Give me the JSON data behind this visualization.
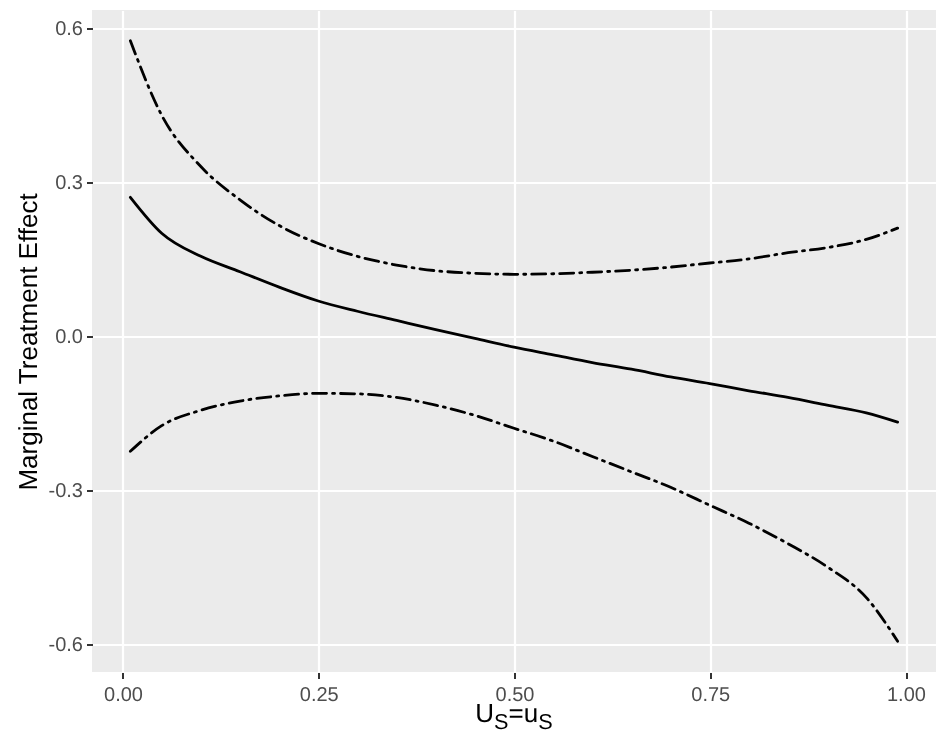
{
  "chart_data": {
    "type": "line",
    "xlabel": "U$_{S}$=u$_{S}$",
    "ylabel": "Marginal Treatment Effect",
    "x": [
      0.01,
      0.05,
      0.1,
      0.15,
      0.2,
      0.25,
      0.3,
      0.35,
      0.4,
      0.45,
      0.5,
      0.55,
      0.6,
      0.65,
      0.7,
      0.75,
      0.8,
      0.85,
      0.9,
      0.95,
      0.99
    ],
    "series": [
      {
        "color": "#000000",
        "line_style": "solid",
        "values": [
          0.27,
          0.2,
          0.155,
          0.125,
          0.095,
          0.068,
          0.048,
          0.03,
          0.012,
          -0.005,
          -0.022,
          -0.037,
          -0.052,
          -0.065,
          -0.08,
          -0.093,
          -0.107,
          -0.12,
          -0.135,
          -0.15,
          -0.168
        ]
      },
      {
        "color": "#000000",
        "line_style": "dashdot",
        "values": [
          0.575,
          0.43,
          0.33,
          0.265,
          0.215,
          0.18,
          0.155,
          0.138,
          0.127,
          0.122,
          0.12,
          0.121,
          0.124,
          0.128,
          0.134,
          0.142,
          0.15,
          0.162,
          0.172,
          0.188,
          0.21
        ]
      },
      {
        "color": "#000000",
        "line_style": "dashdot",
        "values": [
          -0.225,
          -0.175,
          -0.145,
          -0.127,
          -0.117,
          -0.112,
          -0.113,
          -0.12,
          -0.135,
          -0.155,
          -0.18,
          -0.205,
          -0.235,
          -0.265,
          -0.295,
          -0.33,
          -0.365,
          -0.405,
          -0.45,
          -0.51,
          -0.595
        ]
      }
    ],
    "xlim": [
      -0.039,
      1.039
    ],
    "xticks": [
      {
        "value": 0,
        "label": "0.00"
      },
      0.25,
      {
        "value": 0.5,
        "label": "0.50"
      },
      0.75,
      {
        "value": 1,
        "label": "1.00"
      }
    ],
    "ylim": [
      -0.655,
      0.635
    ],
    "yticks": [
      -0.6,
      -0.3,
      {
        "value": 0,
        "label": "0.0"
      },
      0.3,
      0.6
    ],
    "grid": true,
    "marker": "none"
  }
}
